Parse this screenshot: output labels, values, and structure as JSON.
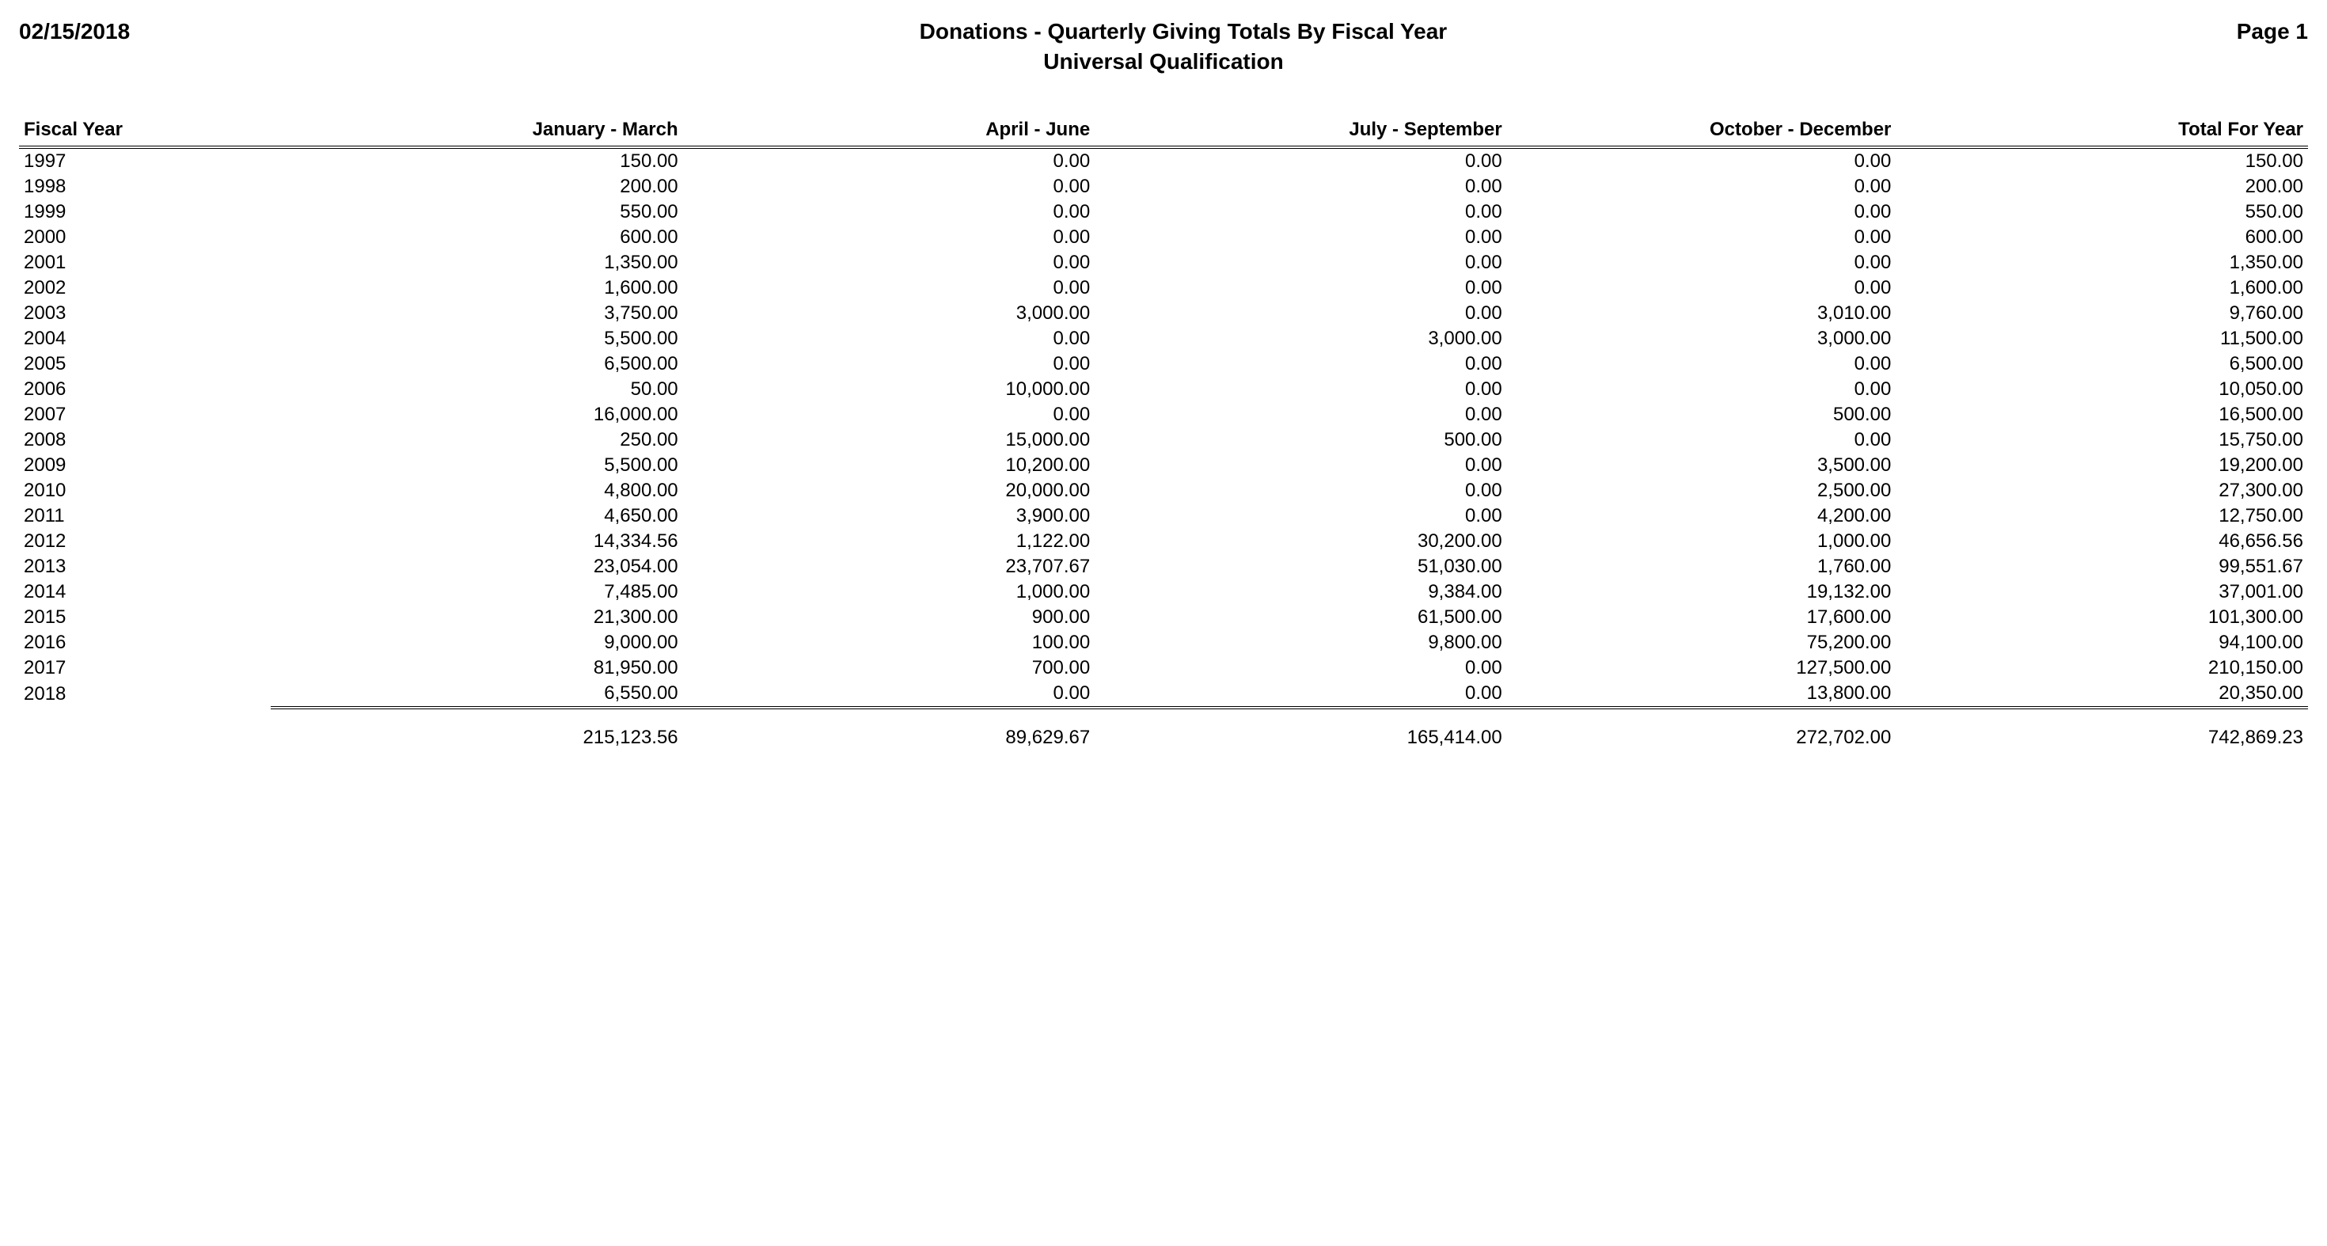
{
  "header": {
    "date": "02/15/2018",
    "title": "Donations - Quarterly Giving Totals By Fiscal Year",
    "subtitle": "Universal Qualification",
    "page": "Page 1"
  },
  "table": {
    "columns": [
      "Fiscal Year",
      "January - March",
      "April - June",
      "July - September",
      "October - December",
      "Total For Year"
    ],
    "rows": [
      [
        "1997",
        "150.00",
        "0.00",
        "0.00",
        "0.00",
        "150.00"
      ],
      [
        "1998",
        "200.00",
        "0.00",
        "0.00",
        "0.00",
        "200.00"
      ],
      [
        "1999",
        "550.00",
        "0.00",
        "0.00",
        "0.00",
        "550.00"
      ],
      [
        "2000",
        "600.00",
        "0.00",
        "0.00",
        "0.00",
        "600.00"
      ],
      [
        "2001",
        "1,350.00",
        "0.00",
        "0.00",
        "0.00",
        "1,350.00"
      ],
      [
        "2002",
        "1,600.00",
        "0.00",
        "0.00",
        "0.00",
        "1,600.00"
      ],
      [
        "2003",
        "3,750.00",
        "3,000.00",
        "0.00",
        "3,010.00",
        "9,760.00"
      ],
      [
        "2004",
        "5,500.00",
        "0.00",
        "3,000.00",
        "3,000.00",
        "11,500.00"
      ],
      [
        "2005",
        "6,500.00",
        "0.00",
        "0.00",
        "0.00",
        "6,500.00"
      ],
      [
        "2006",
        "50.00",
        "10,000.00",
        "0.00",
        "0.00",
        "10,050.00"
      ],
      [
        "2007",
        "16,000.00",
        "0.00",
        "0.00",
        "500.00",
        "16,500.00"
      ],
      [
        "2008",
        "250.00",
        "15,000.00",
        "500.00",
        "0.00",
        "15,750.00"
      ],
      [
        "2009",
        "5,500.00",
        "10,200.00",
        "0.00",
        "3,500.00",
        "19,200.00"
      ],
      [
        "2010",
        "4,800.00",
        "20,000.00",
        "0.00",
        "2,500.00",
        "27,300.00"
      ],
      [
        "2011",
        "4,650.00",
        "3,900.00",
        "0.00",
        "4,200.00",
        "12,750.00"
      ],
      [
        "2012",
        "14,334.56",
        "1,122.00",
        "30,200.00",
        "1,000.00",
        "46,656.56"
      ],
      [
        "2013",
        "23,054.00",
        "23,707.67",
        "51,030.00",
        "1,760.00",
        "99,551.67"
      ],
      [
        "2014",
        "7,485.00",
        "1,000.00",
        "9,384.00",
        "19,132.00",
        "37,001.00"
      ],
      [
        "2015",
        "21,300.00",
        "900.00",
        "61,500.00",
        "17,600.00",
        "101,300.00"
      ],
      [
        "2016",
        "9,000.00",
        "100.00",
        "9,800.00",
        "75,200.00",
        "94,100.00"
      ],
      [
        "2017",
        "81,950.00",
        "700.00",
        "0.00",
        "127,500.00",
        "210,150.00"
      ],
      [
        "2018",
        "6,550.00",
        "0.00",
        "0.00",
        "13,800.00",
        "20,350.00"
      ]
    ],
    "totals": [
      "",
      "215,123.56",
      "89,629.67",
      "165,414.00",
      "272,702.00",
      "742,869.23"
    ]
  },
  "style": {
    "font_family": "Arial",
    "header_fontsize_pt": 21,
    "body_fontsize_pt": 18,
    "text_color": "#000000",
    "background_color": "#ffffff",
    "rule_style": "double",
    "rule_color": "#000000",
    "column_widths_pct": [
      11,
      18,
      18,
      18,
      17,
      18
    ],
    "alignments": [
      "left",
      "right",
      "right",
      "right",
      "right",
      "right"
    ]
  }
}
